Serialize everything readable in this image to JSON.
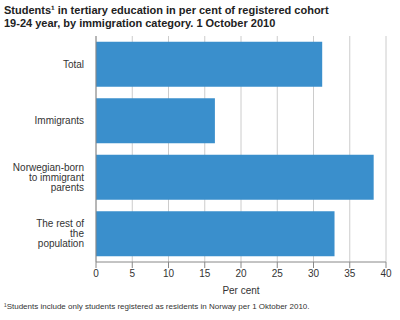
{
  "chart_data": {
    "type": "bar",
    "orientation": "horizontal",
    "title": [
      "Students¹ in tertiary education in per cent of registered cohort",
      "19-24 year, by immigration category. 1 October 2010"
    ],
    "footnote": "¹Students include only students registered as residents in Norway per 1 Oktober 2010.",
    "x_label": "Per cent",
    "categories": [
      "Total",
      "Immigrants",
      "Norwegian-born to immigrant parents",
      "The rest of the population"
    ],
    "values": [
      31.2,
      16.4,
      38.3,
      32.9
    ],
    "color": "#3a8fcc",
    "xlim": [
      0,
      40
    ],
    "xticks": [
      0,
      5,
      10,
      15,
      20,
      25,
      30,
      35,
      40
    ],
    "grid": true
  }
}
